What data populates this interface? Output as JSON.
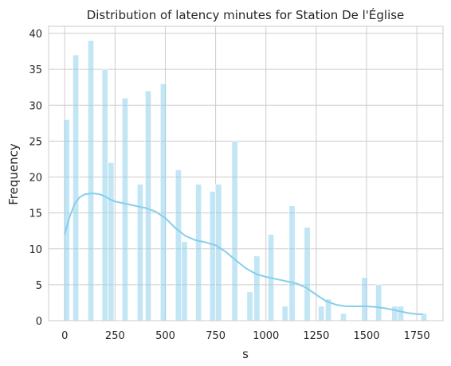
{
  "chart_data": {
    "type": "bar",
    "title": "Distribution of latency minutes for Station De l'Église",
    "xlabel": "s",
    "ylabel": "Frequency",
    "xlim": [
      -80,
      1880
    ],
    "ylim": [
      0,
      41
    ],
    "xticks": [
      0,
      250,
      500,
      750,
      1000,
      1250,
      1500,
      1750
    ],
    "yticks": [
      0,
      5,
      10,
      15,
      20,
      25,
      30,
      35,
      40
    ],
    "grid": true,
    "bar_color": "#87ceeb",
    "kde_color": "#87ceeb",
    "bins": [
      {
        "center": 10,
        "value": 28
      },
      {
        "center": 55,
        "value": 37
      },
      {
        "center": 100,
        "value": 0
      },
      {
        "center": 130,
        "value": 39
      },
      {
        "center": 175,
        "value": 0
      },
      {
        "center": 200,
        "value": 35
      },
      {
        "center": 230,
        "value": 22
      },
      {
        "center": 280,
        "value": 0
      },
      {
        "center": 300,
        "value": 31
      },
      {
        "center": 340,
        "value": 0
      },
      {
        "center": 375,
        "value": 19
      },
      {
        "center": 415,
        "value": 32
      },
      {
        "center": 450,
        "value": 0
      },
      {
        "center": 490,
        "value": 33
      },
      {
        "center": 530,
        "value": 0
      },
      {
        "center": 565,
        "value": 21
      },
      {
        "center": 595,
        "value": 11
      },
      {
        "center": 630,
        "value": 0
      },
      {
        "center": 665,
        "value": 19
      },
      {
        "center": 700,
        "value": 0
      },
      {
        "center": 735,
        "value": 18
      },
      {
        "center": 765,
        "value": 19
      },
      {
        "center": 805,
        "value": 0
      },
      {
        "center": 845,
        "value": 25
      },
      {
        "center": 880,
        "value": 0
      },
      {
        "center": 920,
        "value": 4
      },
      {
        "center": 955,
        "value": 9
      },
      {
        "center": 990,
        "value": 0
      },
      {
        "center": 1025,
        "value": 12
      },
      {
        "center": 1060,
        "value": 0
      },
      {
        "center": 1095,
        "value": 2
      },
      {
        "center": 1130,
        "value": 16
      },
      {
        "center": 1165,
        "value": 0
      },
      {
        "center": 1205,
        "value": 13
      },
      {
        "center": 1240,
        "value": 0
      },
      {
        "center": 1275,
        "value": 2
      },
      {
        "center": 1310,
        "value": 3
      },
      {
        "center": 1345,
        "value": 0
      },
      {
        "center": 1385,
        "value": 1
      },
      {
        "center": 1420,
        "value": 0
      },
      {
        "center": 1455,
        "value": 0
      },
      {
        "center": 1490,
        "value": 6
      },
      {
        "center": 1525,
        "value": 0
      },
      {
        "center": 1560,
        "value": 5
      },
      {
        "center": 1600,
        "value": 0
      },
      {
        "center": 1640,
        "value": 2
      },
      {
        "center": 1670,
        "value": 2
      },
      {
        "center": 1710,
        "value": 0
      },
      {
        "center": 1785,
        "value": 1
      }
    ],
    "bin_width": 33,
    "kde": [
      [
        0,
        12
      ],
      [
        25,
        14.5
      ],
      [
        50,
        16.3
      ],
      [
        75,
        17.2
      ],
      [
        100,
        17.6
      ],
      [
        125,
        17.7
      ],
      [
        150,
        17.7
      ],
      [
        175,
        17.6
      ],
      [
        200,
        17.3
      ],
      [
        225,
        16.9
      ],
      [
        250,
        16.6
      ],
      [
        300,
        16.3
      ],
      [
        350,
        16.0
      ],
      [
        400,
        15.7
      ],
      [
        450,
        15.2
      ],
      [
        500,
        14.3
      ],
      [
        550,
        12.9
      ],
      [
        600,
        11.8
      ],
      [
        650,
        11.2
      ],
      [
        700,
        10.9
      ],
      [
        750,
        10.5
      ],
      [
        800,
        9.6
      ],
      [
        850,
        8.4
      ],
      [
        900,
        7.3
      ],
      [
        950,
        6.5
      ],
      [
        1000,
        6.1
      ],
      [
        1050,
        5.8
      ],
      [
        1100,
        5.5
      ],
      [
        1150,
        5.2
      ],
      [
        1200,
        4.6
      ],
      [
        1250,
        3.6
      ],
      [
        1300,
        2.7
      ],
      [
        1350,
        2.2
      ],
      [
        1400,
        2.0
      ],
      [
        1450,
        2.0
      ],
      [
        1500,
        2.0
      ],
      [
        1550,
        1.9
      ],
      [
        1600,
        1.7
      ],
      [
        1650,
        1.4
      ],
      [
        1700,
        1.1
      ],
      [
        1750,
        0.9
      ],
      [
        1780,
        0.9
      ]
    ]
  }
}
